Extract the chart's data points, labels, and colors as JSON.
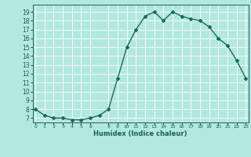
{
  "x": [
    0,
    1,
    2,
    3,
    4,
    5,
    6,
    7,
    8,
    9,
    10,
    11,
    12,
    13,
    14,
    15,
    16,
    17,
    18,
    19,
    20,
    21,
    22,
    23
  ],
  "y": [
    8.0,
    7.3,
    7.0,
    7.0,
    6.8,
    6.8,
    7.0,
    7.3,
    8.0,
    11.5,
    15.0,
    17.0,
    18.5,
    19.0,
    18.0,
    19.0,
    18.5,
    18.2,
    18.0,
    17.3,
    16.0,
    15.2,
    13.5,
    11.5
  ],
  "xlabel": "Humidex (Indice chaleur)",
  "yticks": [
    7,
    8,
    9,
    10,
    11,
    12,
    13,
    14,
    15,
    16,
    17,
    18,
    19
  ],
  "xtick_positions": [
    0,
    1,
    2,
    3,
    4,
    5,
    6,
    8,
    9,
    10,
    11,
    12,
    13,
    14,
    15,
    16,
    17,
    18,
    19,
    20,
    21,
    22,
    23
  ],
  "line_color": "#1a6b5a",
  "bg_color": "#b2e8e0",
  "grid_color": "#ffffff",
  "tick_label_color": "#1a5f5a",
  "xlabel_color": "#1a5f5a",
  "ylim_min": 6.5,
  "ylim_max": 19.8,
  "xlim_min": -0.3,
  "xlim_max": 23.3
}
